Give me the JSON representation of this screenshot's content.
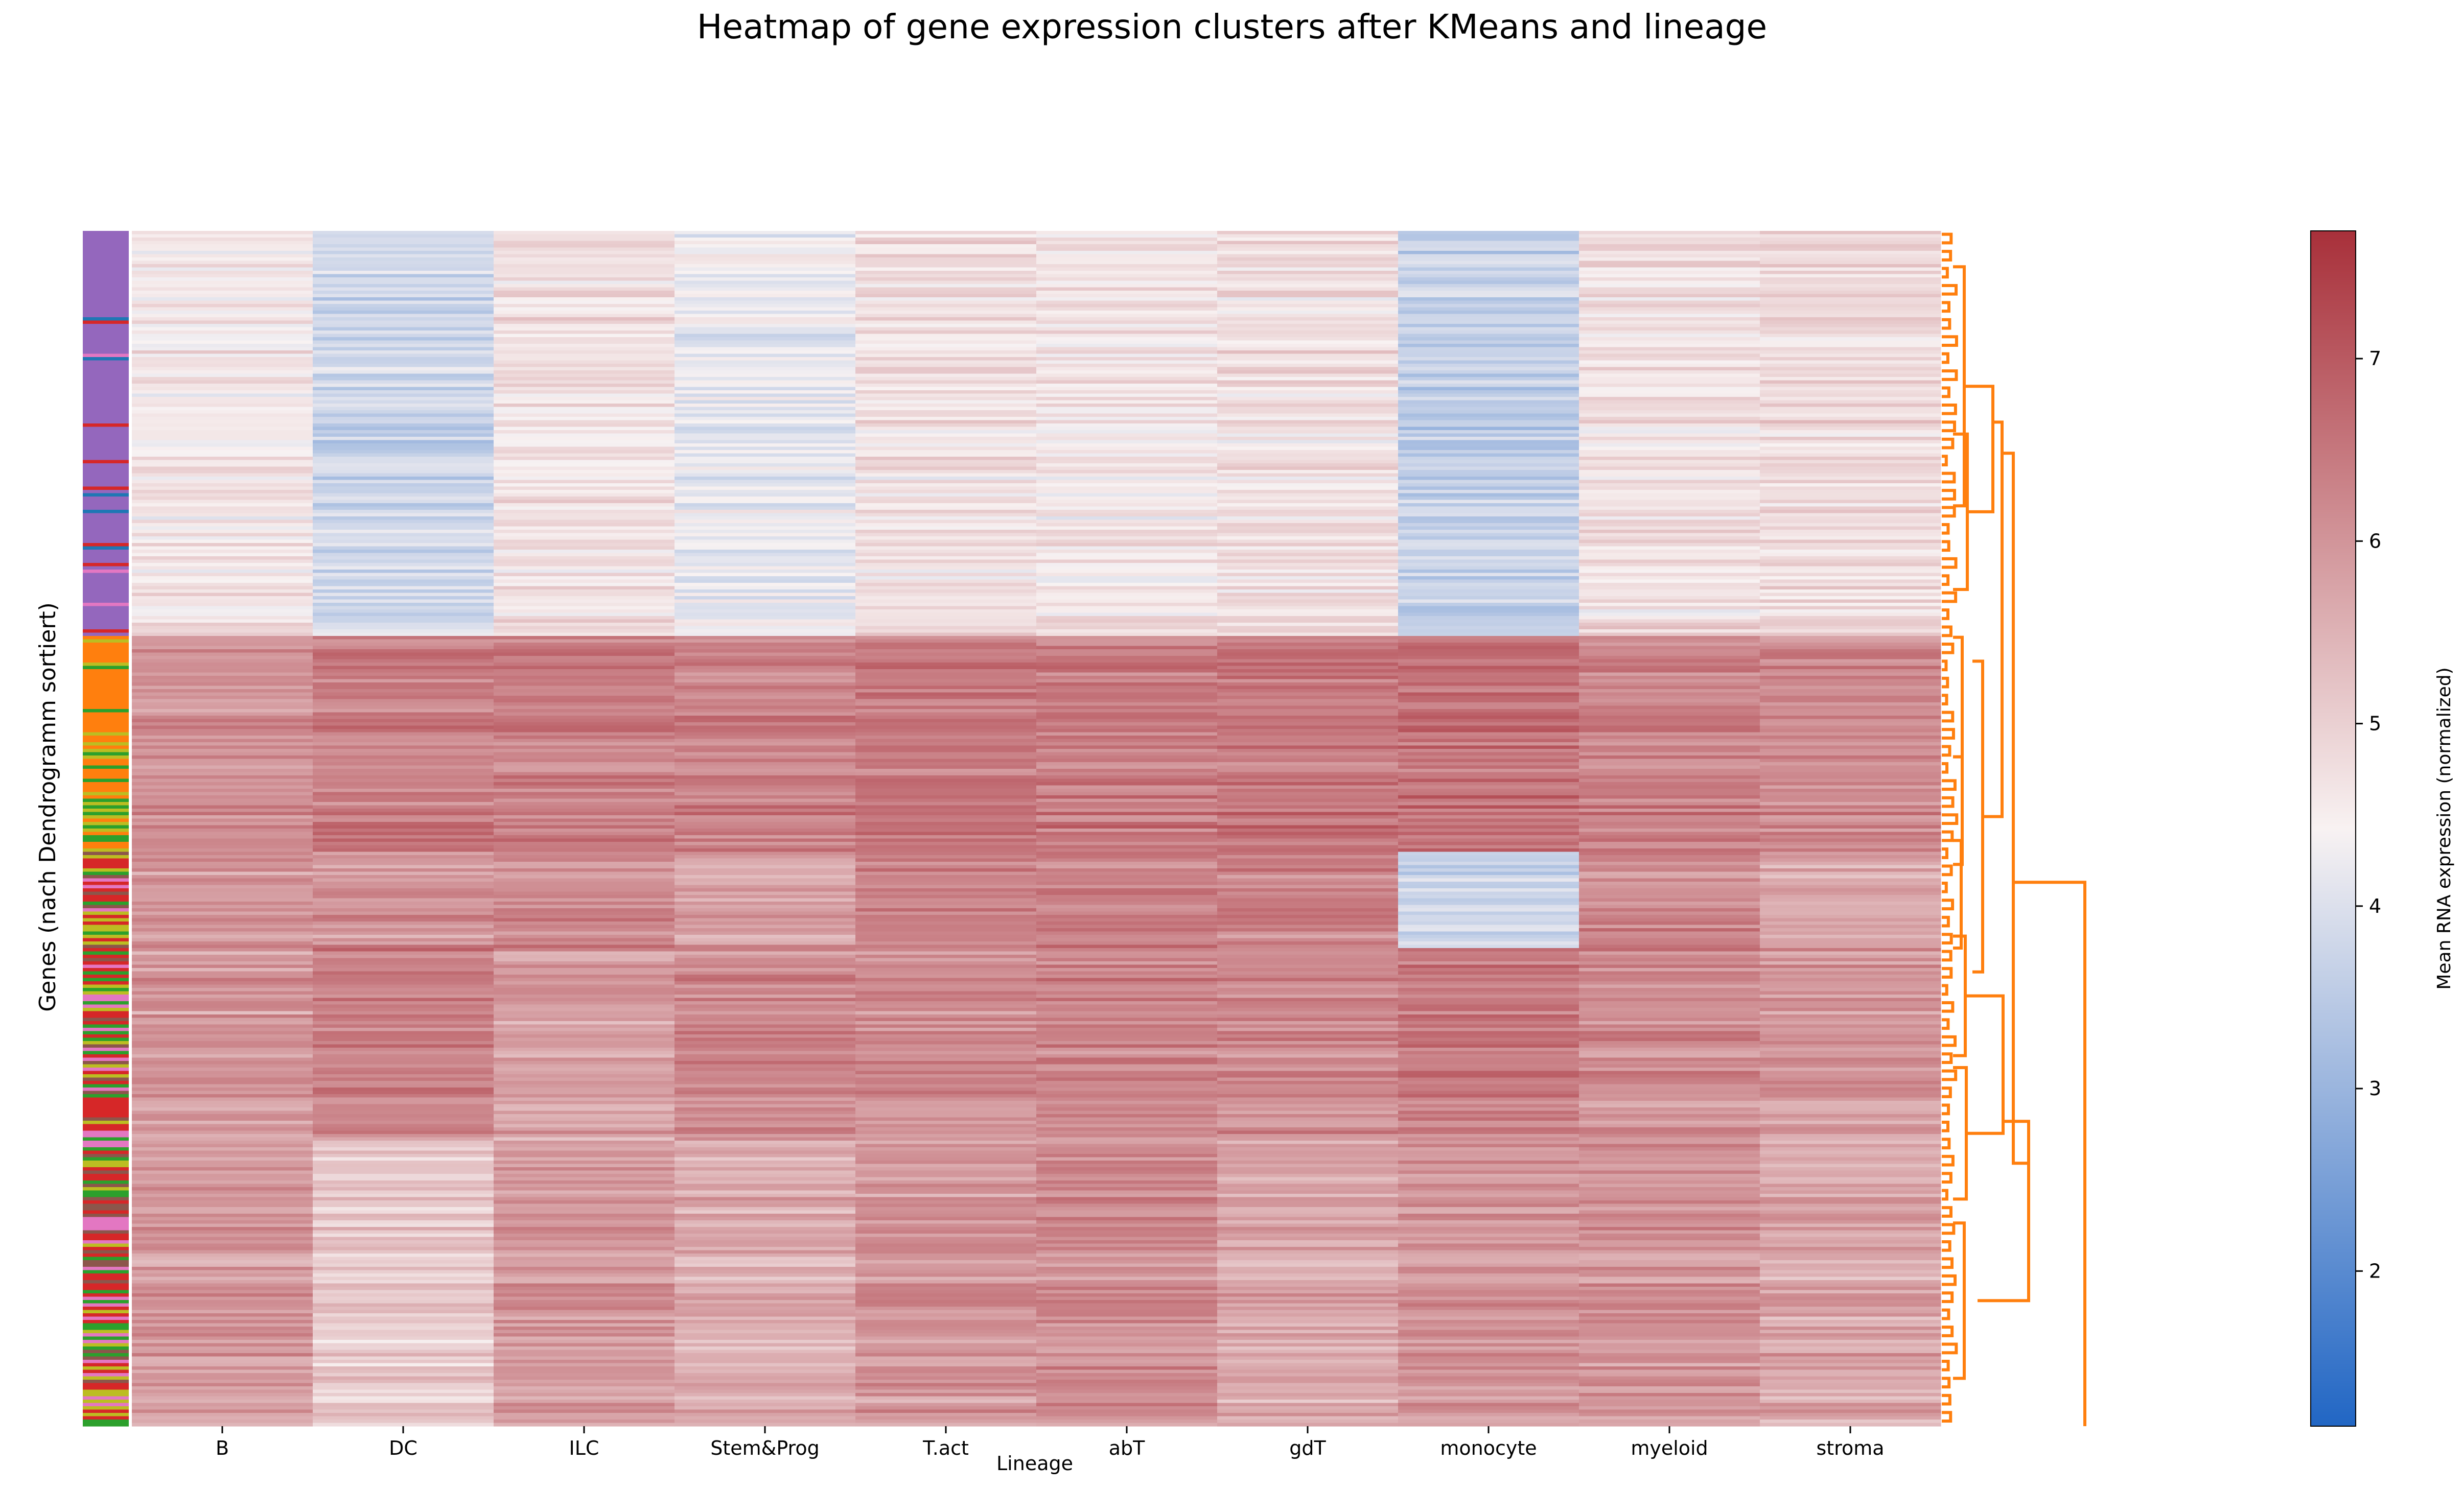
{
  "chart_data": {
    "type": "heatmap",
    "title": "Heatmap of gene expression clusters after KMeans and lineage",
    "xlabel": "Lineage",
    "ylabel": "Genes (nach Dendrogramm sortiert)",
    "columns": [
      "B",
      "DC",
      "ILC",
      "Stem&Prog",
      "T.act",
      "abT",
      "gdT",
      "monocyte",
      "myeloid",
      "stroma"
    ],
    "colorbar": {
      "label": "Mean RNA expression (normalized)",
      "min": 1.15,
      "max": 7.7,
      "ticks": [
        "2",
        "3",
        "4",
        "5",
        "6",
        "7"
      ],
      "colors": [
        "#2166c4",
        "#f8f2f2",
        "#a8303a"
      ]
    },
    "dendrogram_color": "#ff7f0e",
    "cluster_colors": [
      "#9467bd",
      "#ff7f0e",
      "#2ca02c",
      "#d62728",
      "#e377c2",
      "#1f77b4",
      "#8c564b",
      "#bcbd22"
    ],
    "row_blocks": [
      {
        "from": 0.0,
        "to": 0.34,
        "values": [
          4.6,
          3.8,
          4.7,
          4.2,
          4.7,
          4.6,
          4.7,
          3.6,
          4.7,
          4.8
        ]
      },
      {
        "from": 0.34,
        "to": 0.52,
        "values": [
          6.1,
          6.4,
          6.4,
          6.3,
          6.5,
          6.4,
          6.5,
          6.6,
          6.3,
          6.2
        ]
      },
      {
        "from": 0.52,
        "to": 0.6,
        "values": [
          6.0,
          6.0,
          6.2,
          5.8,
          6.4,
          6.3,
          6.3,
          3.8,
          6.2,
          5.7
        ]
      },
      {
        "from": 0.6,
        "to": 0.76,
        "values": [
          5.9,
          6.3,
          5.8,
          6.2,
          6.1,
          6.2,
          6.1,
          6.4,
          6.1,
          6.0
        ]
      },
      {
        "from": 0.76,
        "to": 1.0,
        "values": [
          5.9,
          5.1,
          5.9,
          5.6,
          6.0,
          6.1,
          5.7,
          6.0,
          6.0,
          5.7
        ]
      }
    ]
  }
}
